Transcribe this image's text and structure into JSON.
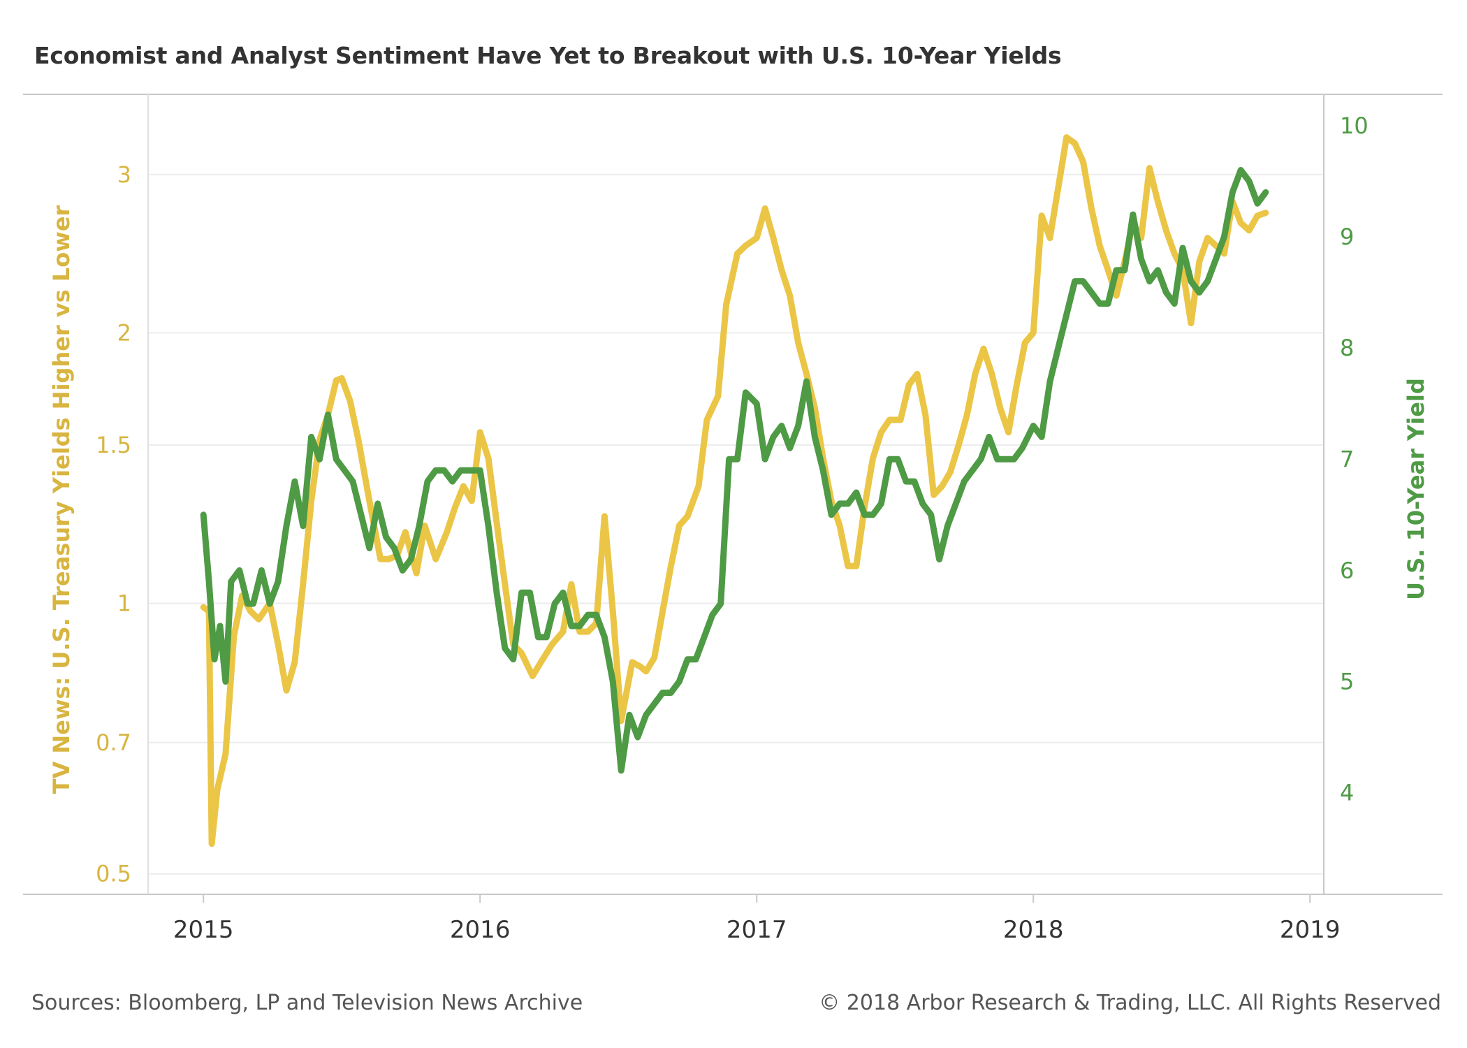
{
  "title": "Economist and Analyst Sentiment Have Yet to Breakout with U.S. 10-Year Yields",
  "footer": {
    "source": "Sources: Bloomberg, LP and Television News Archive",
    "copyright": "© 2018 Arbor Research & Trading, LLC. All Rights Reserved"
  },
  "colors": {
    "sentiment": "#ebc546",
    "yield": "#4e9a45",
    "left_axis_text": "#d8b540",
    "right_axis_text": "#4e9a45",
    "grid": "#ececec",
    "axis": "#c8c8c8"
  },
  "chart_data": {
    "type": "line",
    "title": "Economist and Analyst Sentiment Have Yet to Breakout with U.S. 10-Year Yields",
    "xlabel": "",
    "x_ticks": [
      "2015",
      "2016",
      "2017",
      "2018",
      "2019"
    ],
    "xlim": [
      2014.8,
      2019.05
    ],
    "y_left": {
      "label": "TV News: U.S. Treasury Yields Higher vs Lower",
      "scale": "log",
      "ticks": [
        "0.5",
        "0.7",
        "1",
        "1.5",
        "2",
        "3"
      ],
      "range": [
        0.49,
        3.6
      ]
    },
    "y_right": {
      "label": "U.S. 10-Year Yield",
      "scale": "linear",
      "ticks": [
        "4",
        "5",
        "6",
        "7",
        "8",
        "9",
        "10"
      ],
      "range": [
        3.2,
        10.2
      ]
    },
    "grid": true,
    "legend": "none",
    "series": [
      {
        "axis": "left",
        "x": [
          2015.0,
          2015.02,
          2015.03,
          2015.05,
          2015.08,
          2015.11,
          2015.14,
          2015.17,
          2015.2,
          2015.24,
          2015.27,
          2015.3,
          2015.33,
          2015.36,
          2015.39,
          2015.42,
          2015.45,
          2015.48,
          2015.5,
          2015.53,
          2015.56,
          2015.6,
          2015.64,
          2015.67,
          2015.7,
          2015.73,
          2015.77,
          2015.8,
          2015.84,
          2015.88,
          2015.91,
          2015.94,
          2015.97,
          2016.0,
          2016.03,
          2016.06,
          2016.09,
          2016.12,
          2016.15,
          2016.19,
          2016.22,
          2016.26,
          2016.3,
          2016.33,
          2016.36,
          2016.39,
          2016.42,
          2016.45,
          2016.48,
          2016.51,
          2016.55,
          2016.58,
          2016.6,
          2016.63,
          2016.66,
          2016.69,
          2016.72,
          2016.75,
          2016.79,
          2016.82,
          2016.86,
          2016.89,
          2016.93,
          2016.96,
          2017.0,
          2017.03,
          2017.06,
          2017.09,
          2017.12,
          2017.15,
          2017.18,
          2017.21,
          2017.24,
          2017.27,
          2017.3,
          2017.33,
          2017.36,
          2017.39,
          2017.42,
          2017.45,
          2017.48,
          2017.52,
          2017.55,
          2017.58,
          2017.61,
          2017.64,
          2017.67,
          2017.7,
          2017.73,
          2017.76,
          2017.79,
          2017.82,
          2017.85,
          2017.88,
          2017.91,
          2017.94,
          2017.97,
          2018.0,
          2018.03,
          2018.06,
          2018.09,
          2018.12,
          2018.15,
          2018.18,
          2018.21,
          2018.24,
          2018.27,
          2018.3,
          2018.33,
          2018.36,
          2018.39,
          2018.42,
          2018.45,
          2018.48,
          2018.51,
          2018.54,
          2018.57,
          2018.6,
          2018.63,
          2018.66,
          2018.69,
          2018.72,
          2018.75,
          2018.78,
          2018.81,
          2018.84
        ],
        "values": [
          0.99,
          0.98,
          0.54,
          0.62,
          0.68,
          0.92,
          1.02,
          0.98,
          0.96,
          1.0,
          0.9,
          0.8,
          0.86,
          1.05,
          1.3,
          1.52,
          1.62,
          1.77,
          1.78,
          1.68,
          1.52,
          1.3,
          1.12,
          1.12,
          1.13,
          1.2,
          1.08,
          1.22,
          1.12,
          1.2,
          1.28,
          1.35,
          1.3,
          1.55,
          1.45,
          1.23,
          1.05,
          0.9,
          0.88,
          0.83,
          0.86,
          0.9,
          0.93,
          1.05,
          0.93,
          0.93,
          0.95,
          1.25,
          0.98,
          0.74,
          0.86,
          0.85,
          0.84,
          0.87,
          0.98,
          1.1,
          1.22,
          1.25,
          1.35,
          1.6,
          1.7,
          2.15,
          2.45,
          2.5,
          2.55,
          2.75,
          2.55,
          2.35,
          2.2,
          1.95,
          1.8,
          1.65,
          1.45,
          1.3,
          1.22,
          1.1,
          1.1,
          1.28,
          1.45,
          1.55,
          1.6,
          1.6,
          1.75,
          1.8,
          1.62,
          1.32,
          1.35,
          1.4,
          1.5,
          1.62,
          1.8,
          1.92,
          1.8,
          1.65,
          1.55,
          1.75,
          1.95,
          2.0,
          2.7,
          2.55,
          2.9,
          3.3,
          3.25,
          3.1,
          2.75,
          2.5,
          2.35,
          2.2,
          2.4,
          2.65,
          2.55,
          3.05,
          2.8,
          2.6,
          2.45,
          2.35,
          2.05,
          2.4,
          2.55,
          2.5,
          2.45,
          2.8,
          2.65,
          2.6,
          2.7,
          2.72
        ]
      },
      {
        "axis": "right",
        "x": [
          2015.0,
          2015.02,
          2015.04,
          2015.06,
          2015.08,
          2015.1,
          2015.13,
          2015.16,
          2015.18,
          2015.21,
          2015.24,
          2015.27,
          2015.3,
          2015.33,
          2015.36,
          2015.39,
          2015.42,
          2015.45,
          2015.48,
          2015.51,
          2015.54,
          2015.57,
          2015.6,
          2015.63,
          2015.66,
          2015.69,
          2015.72,
          2015.75,
          2015.78,
          2015.81,
          2015.84,
          2015.87,
          2015.9,
          2015.93,
          2015.96,
          2016.0,
          2016.03,
          2016.06,
          2016.09,
          2016.12,
          2016.15,
          2016.18,
          2016.21,
          2016.24,
          2016.27,
          2016.3,
          2016.33,
          2016.36,
          2016.39,
          2016.42,
          2016.45,
          2016.48,
          2016.51,
          2016.54,
          2016.57,
          2016.6,
          2016.63,
          2016.66,
          2016.69,
          2016.72,
          2016.75,
          2016.78,
          2016.81,
          2016.84,
          2016.87,
          2016.9,
          2016.93,
          2016.96,
          2017.0,
          2017.03,
          2017.06,
          2017.09,
          2017.12,
          2017.15,
          2017.18,
          2017.21,
          2017.24,
          2017.27,
          2017.3,
          2017.33,
          2017.36,
          2017.39,
          2017.42,
          2017.45,
          2017.48,
          2017.51,
          2017.54,
          2017.57,
          2017.6,
          2017.63,
          2017.66,
          2017.69,
          2017.72,
          2017.75,
          2017.78,
          2017.81,
          2017.84,
          2017.87,
          2017.9,
          2017.93,
          2017.96,
          2018.0,
          2018.03,
          2018.06,
          2018.09,
          2018.12,
          2018.15,
          2018.18,
          2018.21,
          2018.24,
          2018.27,
          2018.3,
          2018.33,
          2018.36,
          2018.39,
          2018.42,
          2018.45,
          2018.48,
          2018.51,
          2018.54,
          2018.57,
          2018.6,
          2018.63,
          2018.66,
          2018.69,
          2018.72,
          2018.75,
          2018.78,
          2018.81,
          2018.84
        ],
        "values": [
          6.5,
          5.9,
          5.2,
          5.5,
          5.0,
          5.9,
          6.0,
          5.7,
          5.7,
          6.0,
          5.7,
          5.9,
          6.4,
          6.8,
          6.4,
          7.2,
          7.0,
          7.4,
          7.0,
          6.9,
          6.8,
          6.5,
          6.2,
          6.6,
          6.3,
          6.2,
          6.0,
          6.1,
          6.4,
          6.8,
          6.9,
          6.9,
          6.8,
          6.9,
          6.9,
          6.9,
          6.4,
          5.8,
          5.3,
          5.2,
          5.8,
          5.8,
          5.4,
          5.4,
          5.7,
          5.8,
          5.5,
          5.5,
          5.6,
          5.6,
          5.4,
          5.0,
          4.2,
          4.7,
          4.5,
          4.7,
          4.8,
          4.9,
          4.9,
          5.0,
          5.2,
          5.2,
          5.4,
          5.6,
          5.7,
          7.0,
          7.0,
          7.6,
          7.5,
          7.0,
          7.2,
          7.3,
          7.1,
          7.3,
          7.7,
          7.2,
          6.9,
          6.5,
          6.6,
          6.6,
          6.7,
          6.5,
          6.5,
          6.6,
          7.0,
          7.0,
          6.8,
          6.8,
          6.6,
          6.5,
          6.1,
          6.4,
          6.6,
          6.8,
          6.9,
          7.0,
          7.2,
          7.0,
          7.0,
          7.0,
          7.1,
          7.3,
          7.2,
          7.7,
          8.0,
          8.3,
          8.6,
          8.6,
          8.5,
          8.4,
          8.4,
          8.7,
          8.7,
          9.2,
          8.8,
          8.6,
          8.7,
          8.5,
          8.4,
          8.9,
          8.6,
          8.5,
          8.6,
          8.8,
          9.0,
          9.4,
          9.6,
          9.5,
          9.3,
          9.4
        ]
      }
    ]
  }
}
